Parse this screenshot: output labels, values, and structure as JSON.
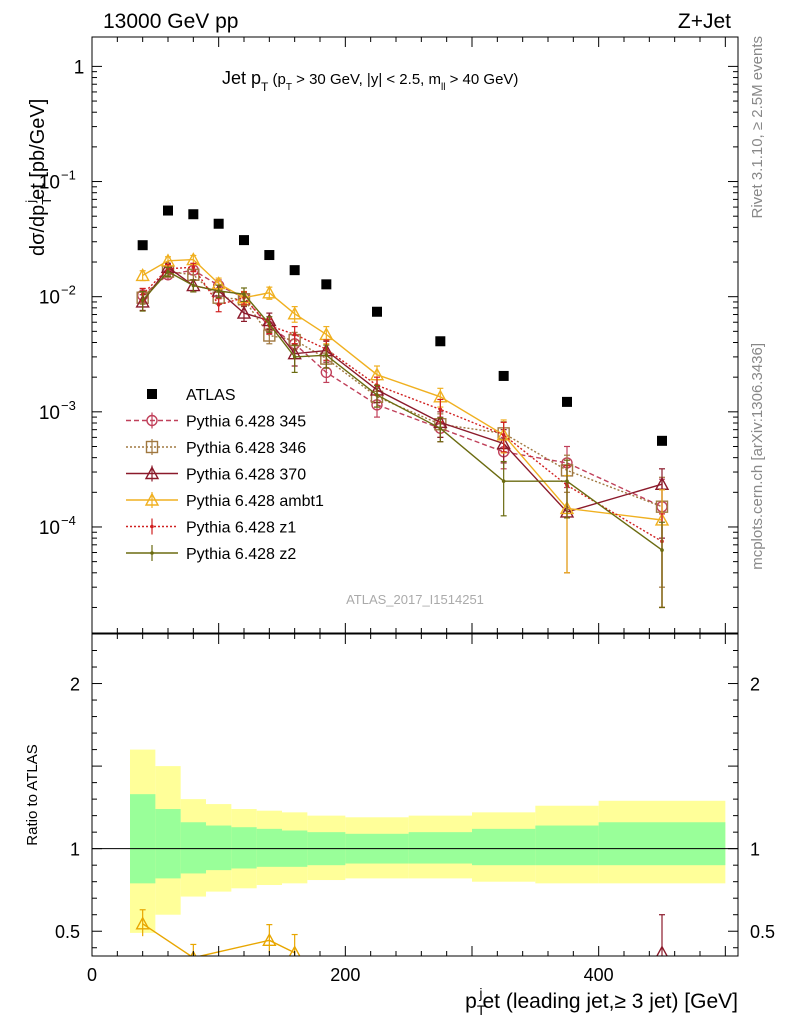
{
  "header": {
    "left": "13000 GeV pp",
    "right": "Z+Jet"
  },
  "side_labels": {
    "rivet": "Rivet 3.1.10, ≥ 2.5M events",
    "mcplots": "mcplots.cern.ch [arXiv:1306.3436]"
  },
  "watermark": "ATLAS_2017_I1514251",
  "title": {
    "main": "Jet p",
    "main_sub": "T",
    "cond": "(p",
    "cond_sub": "T",
    "cond_rest": " > 30 GeV, |y| < 2.5, m",
    "cond_sub2": "ll",
    "cond_end": " > 40 GeV)"
  },
  "top_ylabel": {
    "a": "dσ/dp",
    "a_sub": "T",
    "a_sup": "j",
    "b": "et [pb/GeV]"
  },
  "bottom_ylabel": "Ratio to ATLAS",
  "xlabel": {
    "a": "p",
    "a_sub": "T",
    "a_sup": "j",
    "b": "et (leading jet,≥ 3 jet) [GeV]"
  },
  "chart_data": {
    "type": "line",
    "x_range": [
      0,
      510
    ],
    "x_ticks": [
      0,
      200,
      400
    ],
    "x_tick_labels": [
      "0",
      "200",
      "400"
    ],
    "top": {
      "yscale": "log",
      "ylim": [
        1.2e-05,
        1.8
      ],
      "y_ticks": [
        {
          "value": 1,
          "mant": "1",
          "exp": ""
        },
        {
          "value": 0.1,
          "mant": "10",
          "exp": "−1"
        },
        {
          "value": 0.01,
          "mant": "10",
          "exp": "−2"
        },
        {
          "value": 0.001,
          "mant": "10",
          "exp": "−3"
        },
        {
          "value": 0.0001,
          "mant": "10",
          "exp": "−4"
        }
      ]
    },
    "bottom": {
      "ylim": [
        0.35,
        2.3
      ],
      "y_ticks": [
        0.5,
        1,
        2
      ],
      "y_tick_labels": [
        "0.5",
        "1",
        "2"
      ],
      "bands": [
        {
          "x0": 30,
          "x1": 50,
          "inner": [
            0.79,
            1.33
          ],
          "outer": [
            0.49,
            1.6
          ]
        },
        {
          "x0": 50,
          "x1": 70,
          "inner": [
            0.82,
            1.24
          ],
          "outer": [
            0.6,
            1.5
          ]
        },
        {
          "x0": 70,
          "x1": 90,
          "inner": [
            0.85,
            1.16
          ],
          "outer": [
            0.71,
            1.3
          ]
        },
        {
          "x0": 90,
          "x1": 110,
          "inner": [
            0.87,
            1.14
          ],
          "outer": [
            0.74,
            1.27
          ]
        },
        {
          "x0": 110,
          "x1": 130,
          "inner": [
            0.88,
            1.13
          ],
          "outer": [
            0.76,
            1.24
          ]
        },
        {
          "x0": 130,
          "x1": 150,
          "inner": [
            0.89,
            1.12
          ],
          "outer": [
            0.78,
            1.23
          ]
        },
        {
          "x0": 150,
          "x1": 170,
          "inner": [
            0.89,
            1.11
          ],
          "outer": [
            0.79,
            1.22
          ]
        },
        {
          "x0": 170,
          "x1": 200,
          "inner": [
            0.9,
            1.1
          ],
          "outer": [
            0.81,
            1.2
          ]
        },
        {
          "x0": 200,
          "x1": 250,
          "inner": [
            0.91,
            1.09
          ],
          "outer": [
            0.82,
            1.19
          ]
        },
        {
          "x0": 250,
          "x1": 300,
          "inner": [
            0.91,
            1.1
          ],
          "outer": [
            0.82,
            1.2
          ]
        },
        {
          "x0": 300,
          "x1": 350,
          "inner": [
            0.9,
            1.12
          ],
          "outer": [
            0.8,
            1.22
          ]
        },
        {
          "x0": 350,
          "x1": 400,
          "inner": [
            0.9,
            1.14
          ],
          "outer": [
            0.79,
            1.26
          ]
        },
        {
          "x0": 400,
          "x1": 500,
          "inner": [
            0.9,
            1.16
          ],
          "outer": [
            0.79,
            1.29
          ]
        }
      ],
      "ratio_points": [
        {
          "x": 40,
          "y": 0.545,
          "err": [
            0.47,
            0.63
          ],
          "color": "#e8a600",
          "marker": "triangle"
        },
        {
          "x": 80,
          "y": 0.34,
          "err": [
            0.3,
            0.42
          ],
          "color": "#e8a600",
          "marker": "triangle"
        },
        {
          "x": 140,
          "y": 0.445,
          "err": [
            0.37,
            0.54
          ],
          "color": "#e8a600",
          "marker": "triangle"
        },
        {
          "x": 160,
          "y": 0.37,
          "err": [
            0.3,
            0.48
          ],
          "color": "#e8a600",
          "marker": "triangle"
        },
        {
          "x": 450,
          "y": 0.37,
          "err": [
            0.3,
            0.6
          ],
          "color": "#8b1a2b",
          "marker": "triangle"
        }
      ]
    },
    "legend_placement": "left-middle",
    "series": [
      {
        "name": "ATLAS",
        "color": "#000000",
        "marker": "square",
        "line": "none",
        "x": [
          40,
          60,
          80,
          100,
          120,
          140,
          160,
          185,
          225,
          275,
          325,
          375,
          450
        ],
        "y": [
          0.028,
          0.056,
          0.052,
          0.043,
          0.031,
          0.023,
          0.017,
          0.0128,
          0.0074,
          0.0041,
          0.00205,
          0.00122,
          0.00056
        ],
        "err_lo": [],
        "err_hi": []
      },
      {
        "name": "Pythia 6.428 345",
        "color": "#c0405a",
        "marker": "circle",
        "line": "dashed",
        "x": [
          40,
          60,
          80,
          100,
          120,
          140,
          160,
          185,
          225,
          275,
          325,
          375,
          450
        ],
        "y": [
          0.0103,
          0.0155,
          0.017,
          0.0125,
          0.0098,
          0.0055,
          0.0039,
          0.0022,
          0.00115,
          0.00072,
          0.00045,
          0.00036,
          0.00015
        ],
        "err_lo": [
          0.009,
          0.0142,
          0.0155,
          0.011,
          0.0085,
          0.0047,
          0.0032,
          0.0018,
          0.0009,
          0.00055,
          0.00032,
          0.00022,
          2e-05
        ],
        "err_hi": [
          0.0117,
          0.0168,
          0.0185,
          0.014,
          0.011,
          0.0063,
          0.0046,
          0.0026,
          0.0014,
          0.0009,
          0.0006,
          0.0005,
          0.00026
        ]
      },
      {
        "name": "Pythia 6.428 346",
        "color": "#a07840",
        "marker": "square-open",
        "line": "dotted",
        "x": [
          40,
          60,
          80,
          100,
          120,
          140,
          160,
          185,
          225,
          275,
          325,
          375,
          450
        ],
        "y": [
          0.0098,
          0.0165,
          0.0155,
          0.0098,
          0.0095,
          0.0046,
          0.0042,
          0.0029,
          0.00135,
          0.00078,
          0.00065,
          0.00031,
          0.00015
        ],
        "err_lo": [
          0.0086,
          0.0152,
          0.014,
          0.0086,
          0.0082,
          0.0039,
          0.0035,
          0.0024,
          0.0011,
          0.0006,
          0.00048,
          0.0002,
          3e-05
        ],
        "err_hi": [
          0.011,
          0.0178,
          0.017,
          0.011,
          0.0108,
          0.0053,
          0.0049,
          0.0034,
          0.0016,
          0.00096,
          0.00082,
          0.00042,
          0.00027
        ]
      },
      {
        "name": "Pythia 6.428 370",
        "color": "#8b1a2b",
        "marker": "triangle",
        "line": "solid",
        "x": [
          40,
          60,
          80,
          100,
          120,
          140,
          160,
          185,
          225,
          275,
          325,
          375,
          450
        ],
        "y": [
          0.009,
          0.018,
          0.0125,
          0.0112,
          0.0072,
          0.0062,
          0.0032,
          0.0034,
          0.00155,
          0.00081,
          0.00053,
          0.000135,
          0.000235
        ],
        "err_lo": [
          0.0076,
          0.0165,
          0.011,
          0.0098,
          0.0061,
          0.0052,
          0.0025,
          0.0027,
          0.0012,
          0.0006,
          0.00036,
          4e-05,
          8e-05
        ],
        "err_hi": [
          0.0104,
          0.0195,
          0.014,
          0.0126,
          0.0083,
          0.0072,
          0.0039,
          0.0041,
          0.0019,
          0.001,
          0.0007,
          0.00024,
          0.00032
        ]
      },
      {
        "name": "Pythia 6.428 ambt1",
        "color": "#f0b020",
        "marker": "triangle",
        "line": "solid",
        "x": [
          40,
          60,
          80,
          100,
          120,
          140,
          160,
          185,
          225,
          275,
          325,
          375,
          450
        ],
        "y": [
          0.0153,
          0.0205,
          0.021,
          0.013,
          0.0098,
          0.0108,
          0.0071,
          0.0047,
          0.0021,
          0.00135,
          0.00063,
          0.000145,
          0.000115
        ],
        "err_lo": [
          0.0138,
          0.0188,
          0.0192,
          0.0115,
          0.0085,
          0.0095,
          0.006,
          0.0039,
          0.0017,
          0.0011,
          0.00044,
          4e-05,
          2e-05
        ],
        "err_hi": [
          0.0168,
          0.0222,
          0.0228,
          0.0145,
          0.0111,
          0.0121,
          0.0082,
          0.0055,
          0.0025,
          0.0016,
          0.00085,
          0.00028,
          0.00021
        ]
      },
      {
        "name": "Pythia 6.428 z1",
        "color": "#d02020",
        "marker": "dot",
        "line": "dotted",
        "x": [
          40,
          60,
          80,
          100,
          120,
          140,
          160,
          185,
          225,
          275,
          325,
          375,
          450
        ],
        "y": [
          0.0105,
          0.0175,
          0.018,
          0.0085,
          0.0098,
          0.0056,
          0.0047,
          0.0035,
          0.0017,
          0.00105,
          0.00063,
          0.00023,
          7.5e-05
        ],
        "err_lo": [
          0.0092,
          0.016,
          0.0165,
          0.0074,
          0.0086,
          0.0048,
          0.0039,
          0.0028,
          0.0014,
          0.00082,
          0.00045,
          0.00012,
          2e-05
        ],
        "err_hi": [
          0.0118,
          0.019,
          0.0195,
          0.0096,
          0.011,
          0.0064,
          0.0055,
          0.0042,
          0.002,
          0.00128,
          0.00081,
          0.00034,
          0.00013
        ]
      },
      {
        "name": "Pythia 6.428 z2",
        "color": "#6b6b10",
        "marker": "dot",
        "line": "solid",
        "x": [
          40,
          60,
          80,
          100,
          120,
          140,
          160,
          185,
          225,
          275,
          325,
          375,
          450
        ],
        "y": [
          0.0093,
          0.0165,
          0.0125,
          0.0112,
          0.0105,
          0.0058,
          0.003,
          0.0031,
          0.0014,
          0.00072,
          0.00025,
          0.00025,
          6.3e-05
        ],
        "err_lo": [
          0.0075,
          0.015,
          0.011,
          0.0098,
          0.0091,
          0.0049,
          0.0022,
          0.0024,
          0.0011,
          0.00055,
          0.000125,
          0.00012,
          2e-05
        ],
        "err_hi": [
          0.0111,
          0.018,
          0.014,
          0.0126,
          0.0119,
          0.0067,
          0.0038,
          0.0038,
          0.0017,
          0.00089,
          0.00037,
          0.00038,
          0.00011
        ]
      }
    ]
  }
}
